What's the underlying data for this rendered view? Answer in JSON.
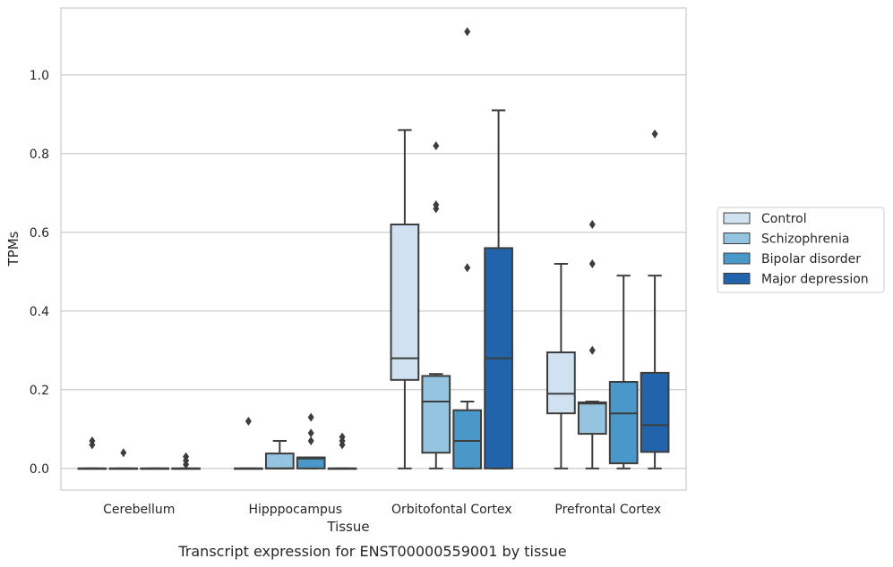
{
  "chart_data": {
    "type": "box",
    "xlabel": "Tissue",
    "ylabel": "TPMs",
    "caption": "Transcript expression for ENST00000559001 by tissue",
    "ylim": [
      -0.055,
      1.17
    ],
    "yticks": [
      0.0,
      0.2,
      0.4,
      0.6,
      0.8,
      1.0
    ],
    "ytick_labels": [
      "0.0",
      "0.2",
      "0.4",
      "0.6",
      "0.8",
      "1.0"
    ],
    "grid": "horizontal",
    "legend_placement": "right",
    "categories": [
      "Cerebellum",
      "Hipppocampus",
      "Orbitofontal Cortex",
      "Prefrontal Cortex"
    ],
    "series": [
      {
        "name": "Control",
        "color": "#d0e1f2",
        "boxes": [
          {
            "q1": 0.0,
            "median": 0.0,
            "q3": 0.0,
            "whisker_low": 0.0,
            "whisker_high": 0.0,
            "outliers": [
              0.06,
              0.07
            ]
          },
          {
            "q1": 0.0,
            "median": 0.0,
            "q3": 0.0,
            "whisker_low": 0.0,
            "whisker_high": 0.0,
            "outliers": [
              0.12
            ]
          },
          {
            "q1": 0.225,
            "median": 0.28,
            "q3": 0.62,
            "whisker_low": 0.0,
            "whisker_high": 0.86,
            "outliers": []
          },
          {
            "q1": 0.14,
            "median": 0.19,
            "q3": 0.295,
            "whisker_low": 0.0,
            "whisker_high": 0.52,
            "outliers": []
          }
        ]
      },
      {
        "name": "Schizophrenia",
        "color": "#94c4df",
        "boxes": [
          {
            "q1": 0.0,
            "median": 0.0,
            "q3": 0.0,
            "whisker_low": 0.0,
            "whisker_high": 0.0,
            "outliers": [
              0.04
            ]
          },
          {
            "q1": 0.0,
            "median": 0.0,
            "q3": 0.038,
            "whisker_low": 0.0,
            "whisker_high": 0.07,
            "outliers": []
          },
          {
            "q1": 0.04,
            "median": 0.17,
            "q3": 0.235,
            "whisker_low": 0.0,
            "whisker_high": 0.24,
            "outliers": [
              0.66,
              0.67,
              0.82
            ]
          },
          {
            "q1": 0.088,
            "median": 0.165,
            "q3": 0.168,
            "whisker_low": 0.0,
            "whisker_high": 0.17,
            "outliers": [
              0.3,
              0.52,
              0.62
            ]
          }
        ]
      },
      {
        "name": "Bipolar disorder",
        "color": "#4a98c9",
        "boxes": [
          {
            "q1": 0.0,
            "median": 0.0,
            "q3": 0.0,
            "whisker_low": 0.0,
            "whisker_high": 0.0,
            "outliers": []
          },
          {
            "q1": 0.0,
            "median": 0.025,
            "q3": 0.028,
            "whisker_low": 0.0,
            "whisker_high": 0.028,
            "outliers": [
              0.07,
              0.09,
              0.13
            ]
          },
          {
            "q1": 0.0,
            "median": 0.07,
            "q3": 0.148,
            "whisker_low": 0.0,
            "whisker_high": 0.17,
            "outliers": [
              0.51,
              1.11
            ]
          },
          {
            "q1": 0.013,
            "median": 0.14,
            "q3": 0.22,
            "whisker_low": 0.0,
            "whisker_high": 0.49,
            "outliers": []
          }
        ]
      },
      {
        "name": "Major depression",
        "color": "#2264ab",
        "boxes": [
          {
            "q1": 0.0,
            "median": 0.0,
            "q3": 0.0,
            "whisker_low": 0.0,
            "whisker_high": 0.0,
            "outliers": [
              0.01,
              0.02,
              0.03
            ]
          },
          {
            "q1": 0.0,
            "median": 0.0,
            "q3": 0.0,
            "whisker_low": 0.0,
            "whisker_high": 0.0,
            "outliers": [
              0.06,
              0.07,
              0.08
            ]
          },
          {
            "q1": 0.0,
            "median": 0.28,
            "q3": 0.56,
            "whisker_low": 0.0,
            "whisker_high": 0.91,
            "outliers": []
          },
          {
            "q1": 0.042,
            "median": 0.11,
            "q3": 0.243,
            "whisker_low": 0.0,
            "whisker_high": 0.49,
            "outliers": [
              0.85
            ]
          }
        ]
      }
    ]
  }
}
